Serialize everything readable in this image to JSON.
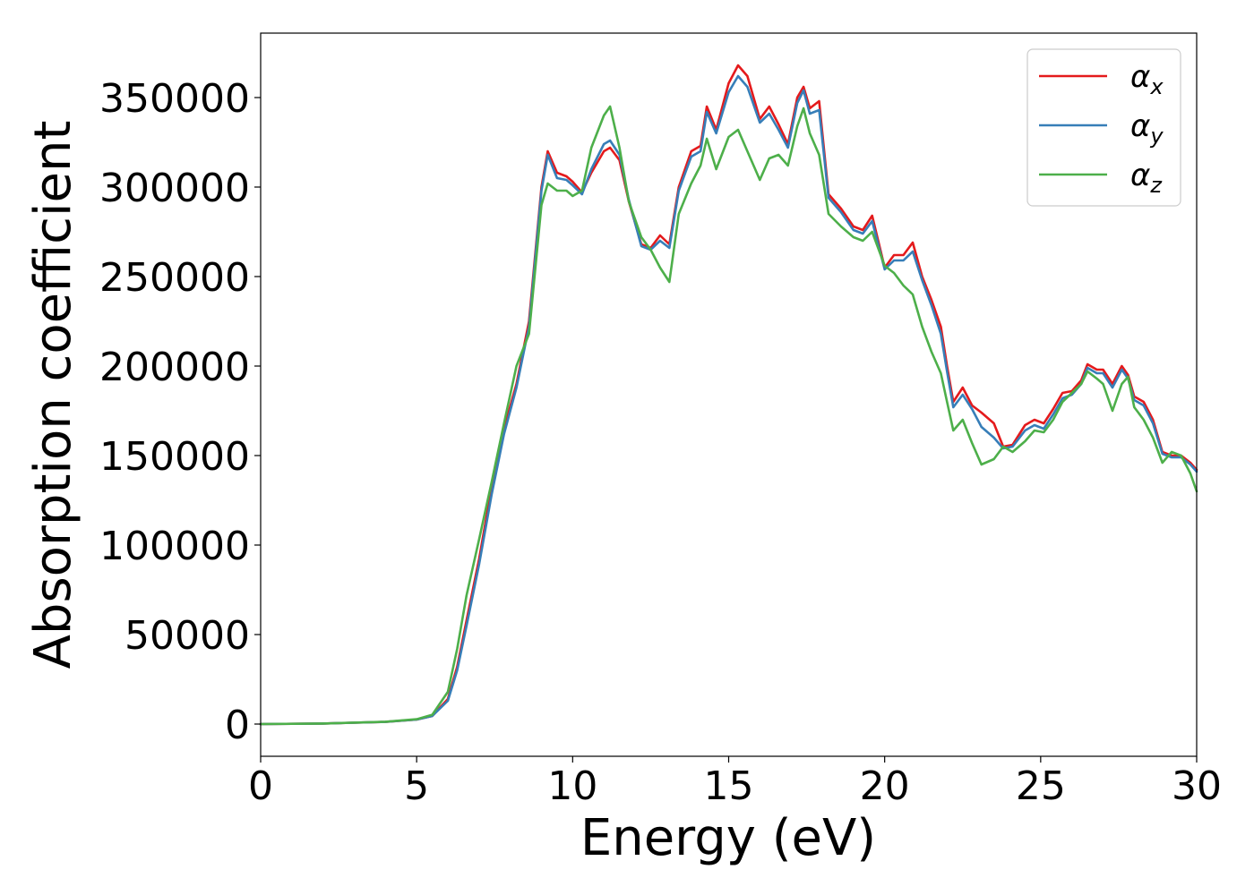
{
  "chart_data": {
    "type": "line",
    "xlabel": "Energy (eV)",
    "ylabel": "Absorption coefficient",
    "xlim": [
      0,
      30
    ],
    "ylim": [
      -18000,
      386000
    ],
    "x_ticks": [
      0,
      5,
      10,
      15,
      20,
      25,
      30
    ],
    "x_tick_labels": [
      "0",
      "5",
      "10",
      "15",
      "20",
      "25",
      "30"
    ],
    "y_ticks": [
      0,
      50000,
      100000,
      150000,
      200000,
      250000,
      300000,
      350000
    ],
    "y_tick_labels": [
      "0",
      "50000",
      "100000",
      "150000",
      "200000",
      "250000",
      "300000",
      "350000"
    ],
    "grid": false,
    "legend_position": "top-right",
    "series": [
      {
        "name": "α_x",
        "label_base": "α",
        "label_sub": "x",
        "color": "#e41a1c",
        "x": [
          0,
          2,
          4,
          5,
          5.5,
          6,
          6.3,
          6.6,
          7,
          7.4,
          7.8,
          8.2,
          8.6,
          9.0,
          9.2,
          9.5,
          9.8,
          10.0,
          10.3,
          10.6,
          11.0,
          11.2,
          11.5,
          11.8,
          12.2,
          12.5,
          12.8,
          13.1,
          13.4,
          13.8,
          14.1,
          14.3,
          14.6,
          15.0,
          15.3,
          15.6,
          16.0,
          16.3,
          16.6,
          16.9,
          17.2,
          17.4,
          17.6,
          17.9,
          18.2,
          18.6,
          19.0,
          19.3,
          19.6,
          20.0,
          20.3,
          20.6,
          20.9,
          21.2,
          21.5,
          21.8,
          22.0,
          22.2,
          22.5,
          22.8,
          23.1,
          23.5,
          23.8,
          24.1,
          24.5,
          24.8,
          25.1,
          25.4,
          25.7,
          26.0,
          26.3,
          26.5,
          26.8,
          27.0,
          27.3,
          27.6,
          27.8,
          28.0,
          28.3,
          28.6,
          28.9,
          29.2,
          29.5,
          29.8,
          30.0
        ],
        "y": [
          0,
          300,
          1200,
          2500,
          4500,
          14000,
          32000,
          58000,
          92000,
          132000,
          165000,
          190000,
          225000,
          300000,
          320000,
          308000,
          306000,
          303000,
          297000,
          308000,
          320000,
          322000,
          315000,
          292000,
          268000,
          266000,
          273000,
          268000,
          300000,
          320000,
          323000,
          345000,
          332000,
          358000,
          368000,
          362000,
          338000,
          345000,
          335000,
          324000,
          350000,
          356000,
          344000,
          348000,
          296000,
          288000,
          278000,
          276000,
          284000,
          255000,
          262000,
          262000,
          269000,
          250000,
          237000,
          222000,
          200000,
          180000,
          188000,
          178000,
          174000,
          168000,
          155000,
          156000,
          167000,
          170000,
          168000,
          176000,
          185000,
          186000,
          192000,
          201000,
          198000,
          198000,
          190000,
          200000,
          195000,
          183000,
          180000,
          170000,
          152000,
          150000,
          150000,
          146000,
          142000
        ]
      },
      {
        "name": "α_y",
        "label_base": "α",
        "label_sub": "y",
        "color": "#377eb8",
        "x": [
          0,
          2,
          4,
          5,
          5.5,
          6,
          6.3,
          6.6,
          7,
          7.4,
          7.8,
          8.2,
          8.6,
          9.0,
          9.2,
          9.5,
          9.8,
          10.0,
          10.3,
          10.6,
          11.0,
          11.2,
          11.5,
          11.8,
          12.2,
          12.5,
          12.8,
          13.1,
          13.4,
          13.8,
          14.1,
          14.3,
          14.6,
          15.0,
          15.3,
          15.6,
          16.0,
          16.3,
          16.6,
          16.9,
          17.2,
          17.4,
          17.6,
          17.9,
          18.2,
          18.6,
          19.0,
          19.3,
          19.6,
          20.0,
          20.3,
          20.6,
          20.9,
          21.2,
          21.5,
          21.8,
          22.0,
          22.2,
          22.5,
          22.8,
          23.1,
          23.5,
          23.8,
          24.1,
          24.5,
          24.8,
          25.1,
          25.4,
          25.7,
          26.0,
          26.3,
          26.5,
          26.8,
          27.0,
          27.3,
          27.6,
          27.8,
          28.0,
          28.3,
          28.6,
          28.9,
          29.2,
          29.5,
          29.8,
          30.0
        ],
        "y": [
          0,
          300,
          1200,
          2500,
          4500,
          13000,
          30000,
          55000,
          89000,
          128000,
          162000,
          188000,
          222000,
          298000,
          318000,
          305000,
          304000,
          301000,
          296000,
          310000,
          324000,
          326000,
          318000,
          293000,
          267000,
          265000,
          270000,
          266000,
          298000,
          317000,
          320000,
          342000,
          330000,
          353000,
          362000,
          356000,
          336000,
          341000,
          332000,
          322000,
          347000,
          354000,
          341000,
          343000,
          294000,
          286000,
          276000,
          274000,
          281000,
          254000,
          259000,
          259000,
          264000,
          248000,
          234000,
          218000,
          197000,
          177000,
          184000,
          176000,
          166000,
          160000,
          154000,
          155000,
          164000,
          167000,
          165000,
          173000,
          182000,
          184000,
          190000,
          199000,
          196000,
          196000,
          188000,
          198000,
          193000,
          181000,
          178000,
          168000,
          151000,
          149000,
          149000,
          145000,
          141000
        ]
      },
      {
        "name": "α_z",
        "label_base": "α",
        "label_sub": "z",
        "color": "#4daf4a",
        "x": [
          0,
          2,
          4,
          5,
          5.5,
          6,
          6.3,
          6.6,
          7,
          7.4,
          7.8,
          8.2,
          8.6,
          9.0,
          9.2,
          9.5,
          9.8,
          10.0,
          10.3,
          10.6,
          11.0,
          11.2,
          11.5,
          11.8,
          12.2,
          12.5,
          12.8,
          13.1,
          13.4,
          13.8,
          14.1,
          14.3,
          14.6,
          15.0,
          15.3,
          15.6,
          16.0,
          16.3,
          16.6,
          16.9,
          17.2,
          17.4,
          17.6,
          17.9,
          18.2,
          18.6,
          19.0,
          19.3,
          19.6,
          20.0,
          20.3,
          20.6,
          20.9,
          21.2,
          21.5,
          21.8,
          22.0,
          22.2,
          22.5,
          22.8,
          23.1,
          23.5,
          23.8,
          24.1,
          24.5,
          24.8,
          25.1,
          25.4,
          25.7,
          26.0,
          26.3,
          26.5,
          26.8,
          27.0,
          27.3,
          27.6,
          27.8,
          28.0,
          28.3,
          28.6,
          28.9,
          29.2,
          29.5,
          29.8,
          30.0
        ],
        "y": [
          0,
          300,
          1300,
          2700,
          5200,
          18000,
          42000,
          72000,
          103000,
          135000,
          168000,
          200000,
          218000,
          290000,
          302000,
          298000,
          298000,
          295000,
          298000,
          322000,
          340000,
          345000,
          322000,
          292000,
          272000,
          265000,
          255000,
          247000,
          285000,
          302000,
          312000,
          327000,
          310000,
          328000,
          332000,
          320000,
          304000,
          316000,
          318000,
          312000,
          334000,
          344000,
          330000,
          318000,
          285000,
          278000,
          272000,
          270000,
          275000,
          256000,
          252000,
          245000,
          240000,
          222000,
          208000,
          196000,
          180000,
          164000,
          170000,
          157000,
          145000,
          148000,
          155000,
          152000,
          158000,
          164000,
          163000,
          170000,
          180000,
          185000,
          190000,
          197000,
          193000,
          190000,
          175000,
          190000,
          194000,
          177000,
          170000,
          160000,
          146000,
          152000,
          150000,
          140000,
          130000
        ]
      }
    ]
  }
}
